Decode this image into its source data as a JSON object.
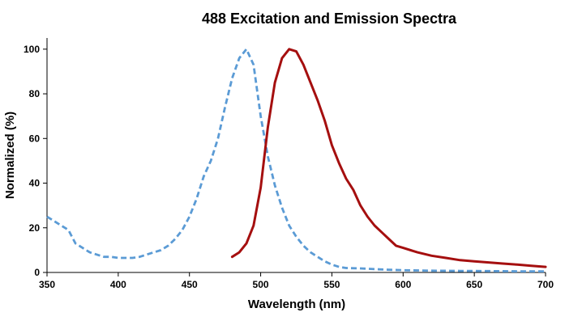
{
  "chart_data": {
    "type": "line",
    "title": "488 Excitation and Emission Spectra",
    "xlabel": "Wavelength (nm)",
    "ylabel": "Normalized (%)",
    "xlim": [
      350,
      700
    ],
    "ylim": [
      0,
      105
    ],
    "x_ticks": [
      350,
      400,
      450,
      500,
      550,
      600,
      650,
      700
    ],
    "y_ticks": [
      0,
      20,
      40,
      60,
      80,
      100
    ],
    "grid": false,
    "legend": "none",
    "series": [
      {
        "role": "excitation",
        "color": "#5b9bd5",
        "line_style": "dashed",
        "x": [
          350,
          355,
          360,
          365,
          370,
          375,
          380,
          385,
          390,
          395,
          400,
          405,
          410,
          415,
          420,
          425,
          430,
          435,
          440,
          445,
          450,
          455,
          460,
          465,
          470,
          475,
          480,
          485,
          490,
          495,
          500,
          505,
          510,
          515,
          520,
          525,
          530,
          535,
          540,
          545,
          550,
          555,
          560,
          570,
          580,
          590,
          600,
          620,
          640,
          660,
          680,
          700
        ],
        "y": [
          25,
          23,
          21,
          19,
          13,
          11,
          9,
          8,
          7,
          7,
          6.5,
          6.5,
          6.5,
          7,
          8,
          9,
          10,
          12,
          15,
          19,
          25,
          33,
          43,
          50,
          60,
          74,
          87,
          96,
          100,
          93,
          70,
          52,
          39,
          29,
          21,
          16,
          12,
          9,
          7,
          5,
          3.5,
          2.5,
          2,
          1.8,
          1.5,
          1.2,
          1.0,
          0.8,
          0.7,
          0.6,
          0.5,
          0.5
        ]
      },
      {
        "role": "emission",
        "color": "#a50f0f",
        "line_style": "solid",
        "x": [
          480,
          485,
          490,
          495,
          500,
          505,
          510,
          515,
          520,
          525,
          530,
          535,
          540,
          545,
          550,
          555,
          560,
          565,
          570,
          575,
          580,
          585,
          590,
          595,
          600,
          610,
          620,
          630,
          640,
          650,
          660,
          670,
          680,
          690,
          700
        ],
        "y": [
          7,
          9,
          13,
          21,
          38,
          65,
          85,
          96,
          100,
          99,
          93,
          85,
          77,
          68,
          57,
          49,
          42,
          37,
          30,
          25,
          21,
          18,
          15,
          12,
          11,
          9,
          7.5,
          6.5,
          5.5,
          5,
          4.5,
          4,
          3.5,
          3,
          2.5
        ]
      }
    ]
  }
}
